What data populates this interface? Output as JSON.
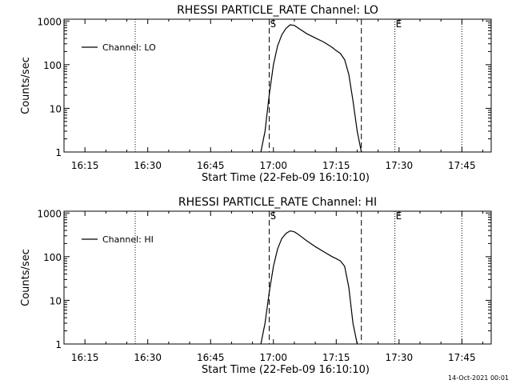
{
  "footer": {
    "timestamp": "14-Oct-2021 00:01"
  },
  "colors": {
    "background": "#ffffff",
    "foreground": "#000000"
  },
  "chart_data": [
    {
      "type": "line",
      "title": "RHESSI PARTICLE_RATE Channel: LO",
      "xlabel": "Start Time (22-Feb-09 16:10:10)",
      "ylabel": "Counts/sec",
      "y_scale": "log",
      "ylim": [
        1,
        1100
      ],
      "xlim": [
        "16:10",
        "17:52"
      ],
      "x_ticks": [
        "16:15",
        "16:30",
        "16:45",
        "17:00",
        "17:15",
        "17:30",
        "17:45"
      ],
      "y_ticks": [
        "1",
        "10",
        "100",
        "1000"
      ],
      "legend": {
        "entries": [
          "Channel: LO"
        ],
        "position": "top-left"
      },
      "series": [
        {
          "name": "Channel: LO",
          "x": [
            "16:57",
            "16:58",
            "16:59",
            "17:00",
            "17:01",
            "17:02",
            "17:03",
            "17:04",
            "17:05",
            "17:06",
            "17:08",
            "17:10",
            "17:12",
            "17:14",
            "17:15",
            "17:16",
            "17:17",
            "17:18",
            "17:19",
            "17:20",
            "17:21"
          ],
          "y": [
            1,
            3,
            20,
            100,
            270,
            480,
            680,
            820,
            790,
            680,
            510,
            410,
            330,
            250,
            210,
            180,
            130,
            60,
            15,
            3,
            1
          ]
        }
      ],
      "vertical_markers": [
        {
          "label": "",
          "time": "16:27",
          "style": "dotted"
        },
        {
          "label": "S",
          "time": "16:59",
          "style": "dashed"
        },
        {
          "label": "",
          "time": "17:21",
          "style": "dashed"
        },
        {
          "label": "E",
          "time": "17:29",
          "style": "dotted"
        },
        {
          "label": "",
          "time": "17:45",
          "style": "dotted"
        }
      ]
    },
    {
      "type": "line",
      "title": "RHESSI PARTICLE_RATE Channel: HI",
      "xlabel": "Start Time (22-Feb-09 16:10:10)",
      "ylabel": "Counts/sec",
      "y_scale": "log",
      "ylim": [
        1,
        1100
      ],
      "xlim": [
        "16:10",
        "17:52"
      ],
      "x_ticks": [
        "16:15",
        "16:30",
        "16:45",
        "17:00",
        "17:15",
        "17:30",
        "17:45"
      ],
      "y_ticks": [
        "1",
        "10",
        "100",
        "1000"
      ],
      "legend": {
        "entries": [
          "Channel: HI"
        ],
        "position": "top-left"
      },
      "series": [
        {
          "name": "Channel: HI",
          "x": [
            "16:57",
            "16:58",
            "16:59",
            "17:00",
            "17:01",
            "17:02",
            "17:03",
            "17:04",
            "17:05",
            "17:06",
            "17:08",
            "17:10",
            "17:12",
            "17:14",
            "17:15",
            "17:16",
            "17:17",
            "17:18",
            "17:19",
            "17:20"
          ],
          "y": [
            1,
            3,
            15,
            60,
            150,
            260,
            340,
            390,
            370,
            320,
            230,
            170,
            130,
            100,
            90,
            80,
            60,
            20,
            3,
            1
          ]
        }
      ],
      "vertical_markers": [
        {
          "label": "",
          "time": "16:27",
          "style": "dotted"
        },
        {
          "label": "S",
          "time": "16:59",
          "style": "dashed"
        },
        {
          "label": "",
          "time": "17:21",
          "style": "dashed"
        },
        {
          "label": "E",
          "time": "17:29",
          "style": "dotted"
        },
        {
          "label": "",
          "time": "17:45",
          "style": "dotted"
        }
      ]
    }
  ]
}
